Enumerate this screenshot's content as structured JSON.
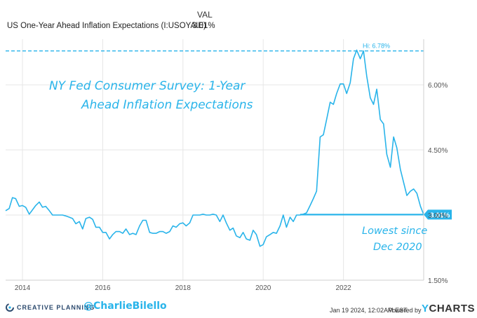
{
  "header": {
    "val_label": "VAL",
    "series_name": "US One-Year Ahead Inflation Expectations (I:USOYAIE)",
    "series_value": "3.01%"
  },
  "annotations": {
    "title_line1": "NY Fed Consumer Survey: 1-Year",
    "title_line2": "Ahead Inflation Expectations",
    "low_line1": "Lowest since",
    "low_line2": "Dec 2020"
  },
  "footer": {
    "logo_text": "CREATIVE PLANNING",
    "handle": "@CharlieBilello",
    "timestamp": "Jan 19 2024, 12:02AM EST.",
    "powered_by": "Powered by",
    "brand_y": "Y",
    "brand_rest": "CHARTS"
  },
  "colors": {
    "line": "#29b4ea",
    "grid": "#e6e6e6",
    "accent": "#29b4ea"
  },
  "chart_data": {
    "type": "line",
    "title": "US One-Year Ahead Inflation Expectations (I:USOYAIE)",
    "xlabel": "",
    "ylabel": "",
    "xlim": [
      2013.58,
      2024.0
    ],
    "ylim": [
      1.5,
      7.05
    ],
    "x_ticks": [
      2014,
      2016,
      2018,
      2020,
      2022
    ],
    "x_tick_labels": [
      "2014",
      "2016",
      "2018",
      "2020",
      "2022"
    ],
    "y_ticks": [
      1.5,
      3.0,
      4.5,
      6.0
    ],
    "y_tick_labels": [
      "1.50%",
      "3.00%",
      "4.50%",
      "6.00%"
    ],
    "high_label": "Hi: 6.78%",
    "high_value": 6.78,
    "last_value": 3.01,
    "last_value_label": "3.01%",
    "series": [
      {
        "name": "US One-Year Ahead Inflation Expectations",
        "x": [
          2013.58,
          2013.67,
          2013.75,
          2013.83,
          2013.92,
          2014.0,
          2014.08,
          2014.17,
          2014.25,
          2014.33,
          2014.42,
          2014.5,
          2014.58,
          2014.67,
          2014.75,
          2014.83,
          2014.92,
          2015.0,
          2015.08,
          2015.17,
          2015.25,
          2015.33,
          2015.42,
          2015.5,
          2015.58,
          2015.67,
          2015.75,
          2015.83,
          2015.92,
          2016.0,
          2016.08,
          2016.17,
          2016.25,
          2016.33,
          2016.42,
          2016.5,
          2016.58,
          2016.67,
          2016.75,
          2016.83,
          2016.92,
          2017.0,
          2017.08,
          2017.17,
          2017.25,
          2017.33,
          2017.42,
          2017.5,
          2017.58,
          2017.67,
          2017.75,
          2017.83,
          2017.92,
          2018.0,
          2018.08,
          2018.17,
          2018.25,
          2018.33,
          2018.42,
          2018.5,
          2018.58,
          2018.67,
          2018.75,
          2018.83,
          2018.92,
          2019.0,
          2019.08,
          2019.17,
          2019.25,
          2019.33,
          2019.42,
          2019.5,
          2019.58,
          2019.67,
          2019.75,
          2019.83,
          2019.92,
          2020.0,
          2020.08,
          2020.17,
          2020.25,
          2020.33,
          2020.42,
          2020.5,
          2020.58,
          2020.67,
          2020.75,
          2020.83,
          2020.92,
          2021.0,
          2021.08,
          2021.17,
          2021.25,
          2021.33,
          2021.42,
          2021.5,
          2021.58,
          2021.67,
          2021.75,
          2021.83,
          2021.92,
          2022.0,
          2022.08,
          2022.17,
          2022.25,
          2022.33,
          2022.42,
          2022.5,
          2022.58,
          2022.67,
          2022.75,
          2022.83,
          2022.92,
          2023.0,
          2023.08,
          2023.17,
          2023.25,
          2023.33,
          2023.42,
          2023.5,
          2023.58,
          2023.67,
          2023.75,
          2023.83,
          2023.92,
          2024.0
        ],
        "values": [
          3.1,
          3.15,
          3.4,
          3.38,
          3.2,
          3.22,
          3.18,
          3.02,
          3.12,
          3.22,
          3.3,
          3.18,
          3.2,
          3.1,
          3.0,
          3.0,
          3.0,
          3.0,
          2.98,
          2.95,
          2.92,
          2.8,
          2.85,
          2.68,
          2.92,
          2.95,
          2.9,
          2.72,
          2.72,
          2.6,
          2.6,
          2.45,
          2.55,
          2.62,
          2.62,
          2.58,
          2.68,
          2.55,
          2.58,
          2.55,
          2.75,
          2.88,
          2.88,
          2.6,
          2.58,
          2.58,
          2.62,
          2.62,
          2.58,
          2.62,
          2.75,
          2.72,
          2.8,
          2.82,
          2.75,
          2.82,
          3.0,
          3.0,
          3.0,
          3.02,
          3.0,
          3.0,
          3.02,
          3.0,
          2.85,
          3.0,
          2.82,
          2.65,
          2.7,
          2.52,
          2.48,
          2.6,
          2.45,
          2.42,
          2.65,
          2.55,
          2.28,
          2.32,
          2.5,
          2.55,
          2.6,
          2.58,
          2.75,
          3.0,
          2.72,
          2.95,
          2.85,
          3.0,
          3.0,
          3.02,
          3.05,
          3.22,
          3.38,
          3.55,
          4.8,
          4.85,
          5.2,
          5.6,
          5.55,
          5.8,
          6.02,
          6.02,
          5.8,
          6.05,
          6.6,
          6.8,
          6.6,
          6.78,
          6.2,
          5.7,
          5.55,
          5.9,
          5.2,
          5.1,
          4.4,
          4.1,
          4.8,
          4.55,
          4.05,
          3.75,
          3.45,
          3.55,
          3.6,
          3.5,
          3.2,
          3.01
        ]
      }
    ]
  }
}
